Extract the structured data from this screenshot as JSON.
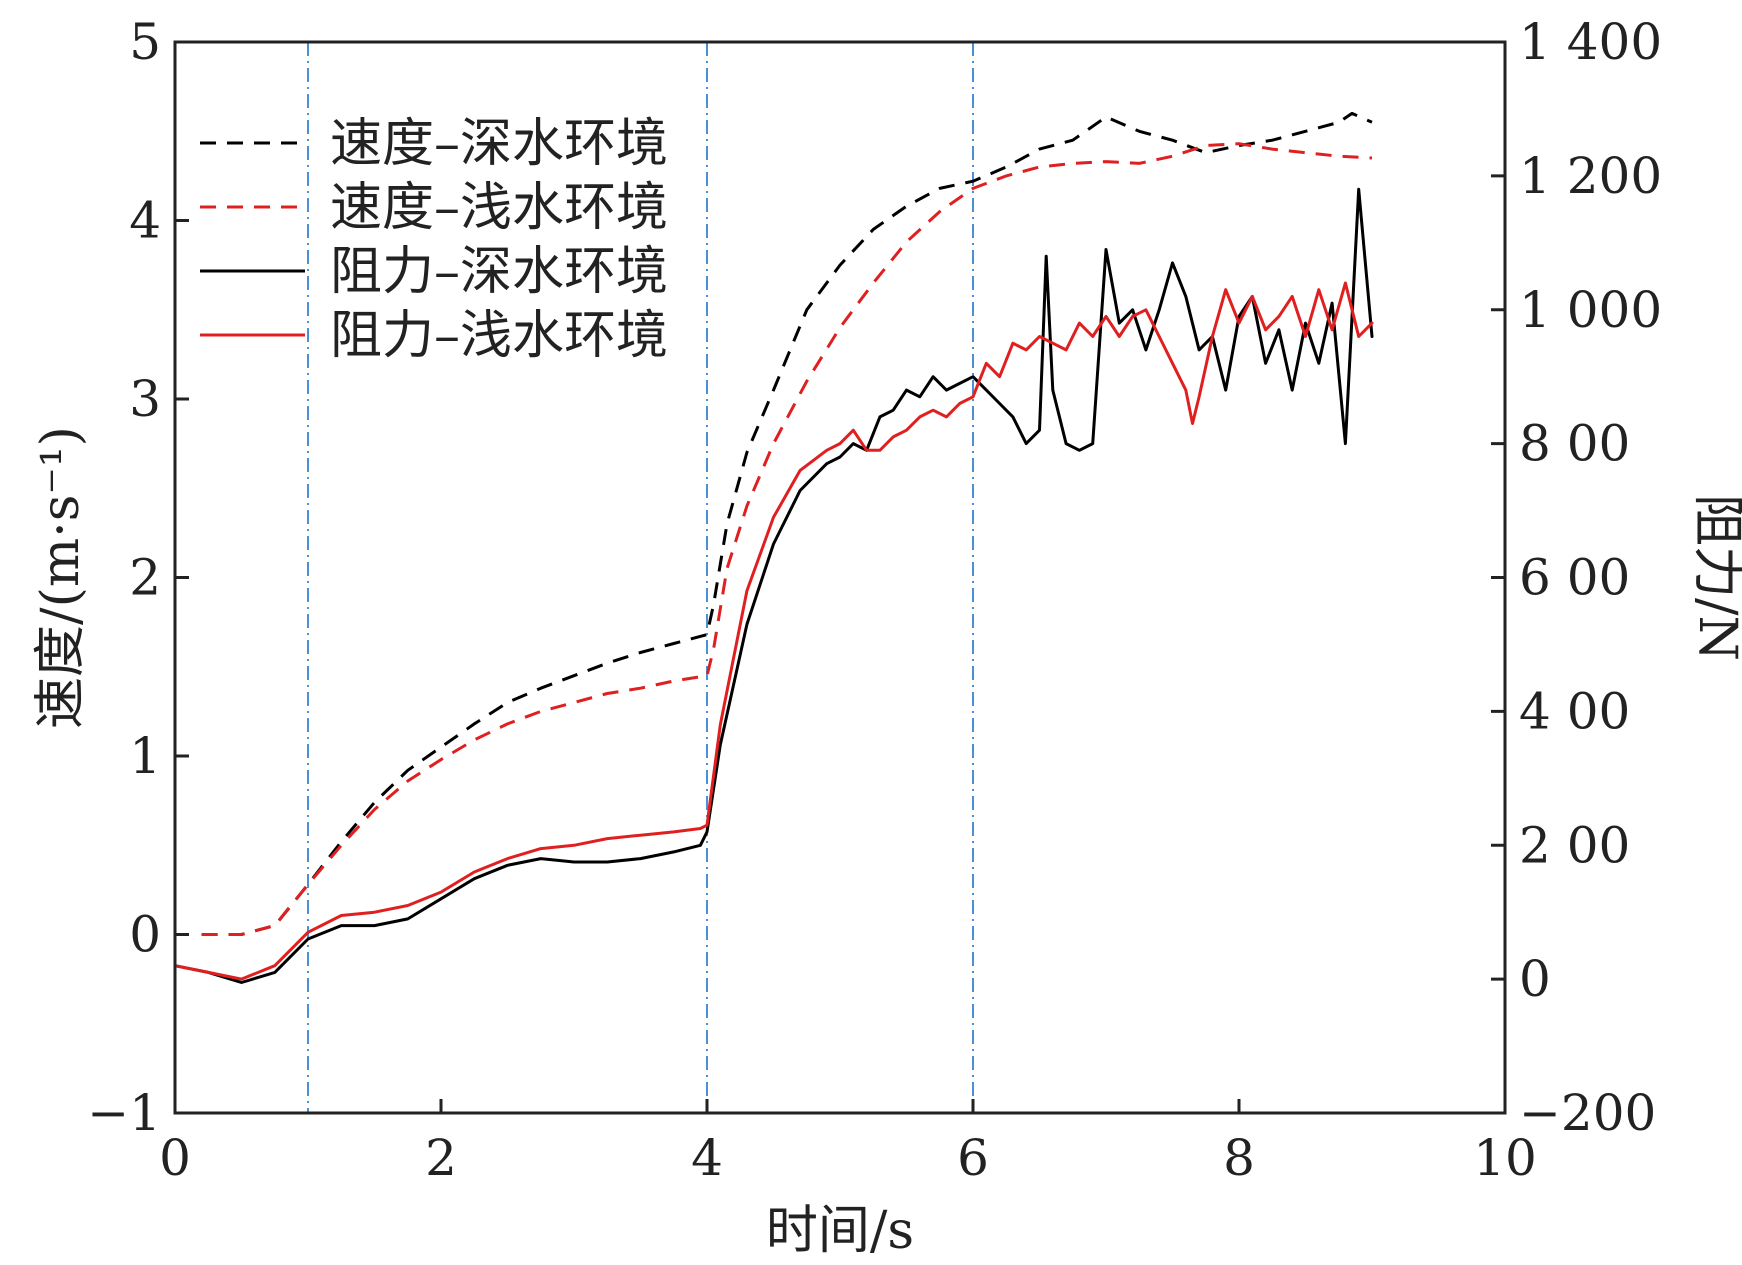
{
  "chart_data": {
    "type": "line",
    "xlabel": "时间/s",
    "ylabel_left": "速度/(m·s⁻¹)",
    "ylabel_right": "阻力/N",
    "xlim": [
      0,
      10
    ],
    "ylim_left": [
      -1,
      5
    ],
    "ylim_right": [
      -200,
      1400
    ],
    "x_ticks": [
      0,
      2,
      4,
      6,
      8,
      10
    ],
    "x_tick_labels": [
      "0",
      "2",
      "4",
      "6",
      "8",
      "10"
    ],
    "y_left_ticks": [
      -1,
      0,
      1,
      2,
      3,
      4,
      5
    ],
    "y_left_tick_labels": [
      "−1",
      "0",
      "1",
      "2",
      "3",
      "4",
      "5"
    ],
    "y_right_ticks": [
      -200,
      0,
      200,
      400,
      600,
      800,
      1000,
      1200,
      1400
    ],
    "y_right_tick_labels": [
      "−200",
      "0",
      "2 00",
      "4 00",
      "6 00",
      "8 00",
      "1 000",
      "1 200",
      "1 400"
    ],
    "vlines": [
      1,
      4,
      6
    ],
    "vline_color": "#4a90d9",
    "legend_position": "top-left",
    "grid": false,
    "series": [
      {
        "name": "速度–深水环境",
        "axis": "left",
        "style": "dashed",
        "color": "#000000",
        "x": [
          0.2,
          0.5,
          0.75,
          1.0,
          1.25,
          1.5,
          1.75,
          2.0,
          2.25,
          2.5,
          2.75,
          3.0,
          3.25,
          3.5,
          3.75,
          4.0,
          4.05,
          4.15,
          4.3,
          4.5,
          4.75,
          5.0,
          5.25,
          5.5,
          5.75,
          6.0,
          6.25,
          6.5,
          6.75,
          7.0,
          7.25,
          7.5,
          7.75,
          8.0,
          8.25,
          8.5,
          8.75,
          8.85,
          9.0
        ],
        "y": [
          0.0,
          0.0,
          0.05,
          0.28,
          0.52,
          0.74,
          0.92,
          1.05,
          1.18,
          1.3,
          1.38,
          1.45,
          1.52,
          1.58,
          1.63,
          1.68,
          1.85,
          2.3,
          2.7,
          3.05,
          3.5,
          3.75,
          3.95,
          4.08,
          4.18,
          4.22,
          4.3,
          4.4,
          4.45,
          4.58,
          4.5,
          4.45,
          4.38,
          4.42,
          4.45,
          4.5,
          4.55,
          4.6,
          4.55
        ]
      },
      {
        "name": "速度–浅水环境",
        "axis": "left",
        "style": "dashed",
        "color": "#e02020",
        "x": [
          0.2,
          0.5,
          0.75,
          1.0,
          1.25,
          1.5,
          1.75,
          2.0,
          2.25,
          2.5,
          2.75,
          3.0,
          3.25,
          3.5,
          3.75,
          4.0,
          4.05,
          4.15,
          4.3,
          4.5,
          4.75,
          5.0,
          5.25,
          5.5,
          5.75,
          6.0,
          6.25,
          6.5,
          6.75,
          7.0,
          7.25,
          7.5,
          7.75,
          8.0,
          8.25,
          8.5,
          8.75,
          9.0
        ],
        "y": [
          0.0,
          0.0,
          0.05,
          0.28,
          0.5,
          0.7,
          0.86,
          0.98,
          1.09,
          1.18,
          1.25,
          1.3,
          1.35,
          1.38,
          1.42,
          1.45,
          1.6,
          2.05,
          2.4,
          2.75,
          3.1,
          3.4,
          3.65,
          3.88,
          4.05,
          4.18,
          4.25,
          4.3,
          4.32,
          4.33,
          4.32,
          4.36,
          4.42,
          4.43,
          4.4,
          4.38,
          4.36,
          4.35
        ]
      },
      {
        "name": "阻力–深水环境",
        "axis": "right",
        "style": "solid",
        "color": "#000000",
        "x": [
          0.0,
          0.25,
          0.5,
          0.75,
          1.0,
          1.25,
          1.5,
          1.75,
          2.0,
          2.25,
          2.5,
          2.75,
          3.0,
          3.25,
          3.5,
          3.75,
          3.95,
          4.0,
          4.1,
          4.3,
          4.5,
          4.7,
          4.9,
          5.0,
          5.1,
          5.2,
          5.3,
          5.4,
          5.5,
          5.6,
          5.7,
          5.8,
          5.9,
          6.0,
          6.1,
          6.2,
          6.3,
          6.4,
          6.5,
          6.55,
          6.6,
          6.7,
          6.8,
          6.9,
          7.0,
          7.1,
          7.2,
          7.3,
          7.4,
          7.5,
          7.6,
          7.7,
          7.8,
          7.9,
          8.0,
          8.1,
          8.2,
          8.3,
          8.4,
          8.5,
          8.6,
          8.7,
          8.8,
          8.9,
          9.0
        ],
        "y": [
          20,
          10,
          -5,
          10,
          60,
          80,
          80,
          90,
          120,
          150,
          170,
          180,
          175,
          175,
          180,
          190,
          200,
          220,
          350,
          530,
          650,
          730,
          770,
          780,
          800,
          790,
          840,
          850,
          880,
          870,
          900,
          880,
          890,
          900,
          880,
          860,
          840,
          800,
          820,
          1080,
          880,
          800,
          790,
          800,
          1090,
          980,
          1000,
          940,
          1000,
          1070,
          1020,
          940,
          960,
          880,
          990,
          1020,
          920,
          970,
          880,
          980,
          920,
          1010,
          800,
          1180,
          960
        ]
      },
      {
        "name": "阻力–浅水环境",
        "axis": "right",
        "style": "solid",
        "color": "#e02020",
        "x": [
          0.0,
          0.25,
          0.5,
          0.75,
          1.0,
          1.25,
          1.5,
          1.75,
          2.0,
          2.25,
          2.5,
          2.75,
          3.0,
          3.25,
          3.5,
          3.75,
          3.95,
          4.0,
          4.1,
          4.3,
          4.5,
          4.7,
          4.9,
          5.0,
          5.1,
          5.2,
          5.3,
          5.4,
          5.5,
          5.6,
          5.7,
          5.8,
          5.9,
          6.0,
          6.1,
          6.2,
          6.3,
          6.4,
          6.5,
          6.6,
          6.7,
          6.8,
          6.9,
          7.0,
          7.1,
          7.2,
          7.3,
          7.4,
          7.5,
          7.6,
          7.65,
          7.7,
          7.8,
          7.9,
          8.0,
          8.1,
          8.2,
          8.3,
          8.4,
          8.5,
          8.6,
          8.7,
          8.8,
          8.9,
          9.0
        ],
        "y": [
          20,
          10,
          0,
          20,
          70,
          95,
          100,
          110,
          130,
          160,
          180,
          195,
          200,
          210,
          215,
          220,
          225,
          230,
          380,
          580,
          690,
          760,
          790,
          800,
          820,
          790,
          790,
          810,
          820,
          840,
          850,
          840,
          860,
          870,
          920,
          900,
          950,
          940,
          960,
          950,
          940,
          980,
          960,
          990,
          960,
          990,
          1000,
          960,
          920,
          880,
          830,
          870,
          960,
          1030,
          980,
          1020,
          970,
          990,
          1020,
          960,
          1030,
          970,
          1040,
          960,
          980
        ]
      }
    ]
  }
}
